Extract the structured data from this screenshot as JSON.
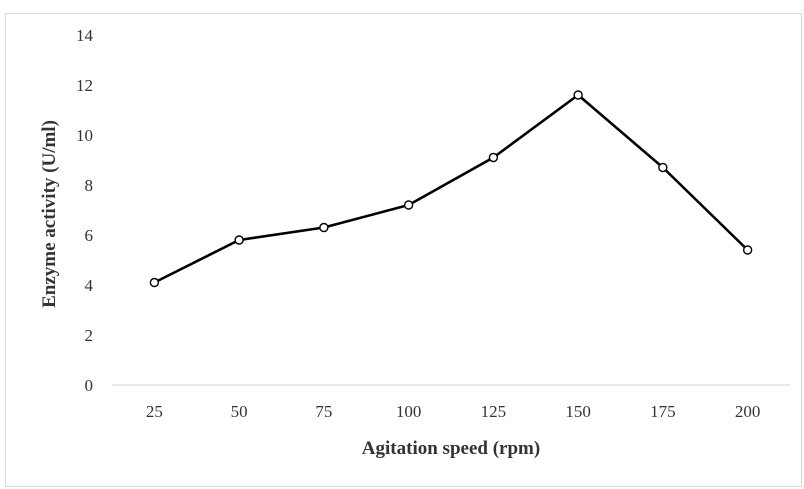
{
  "chart_data": {
    "type": "line",
    "title": "",
    "xlabel": "Agitation speed (rpm)",
    "ylabel": "Enzyme activity (U/ml)",
    "categories": [
      "25",
      "50",
      "75",
      "100",
      "125",
      "150",
      "175",
      "200"
    ],
    "series": [
      {
        "values": [
          4.1,
          5.8,
          6.3,
          7.2,
          9.1,
          11.6,
          8.7,
          5.4
        ]
      }
    ],
    "ylim": [
      0,
      14
    ],
    "yticks": [
      "0",
      "2",
      "4",
      "6",
      "8",
      "10",
      "12",
      "14"
    ],
    "grid": false,
    "legend": "none",
    "colors": {
      "line": "#000000",
      "marker_fill": "#ffffff",
      "axis": "#d9d9d9",
      "text": "#333333"
    }
  }
}
